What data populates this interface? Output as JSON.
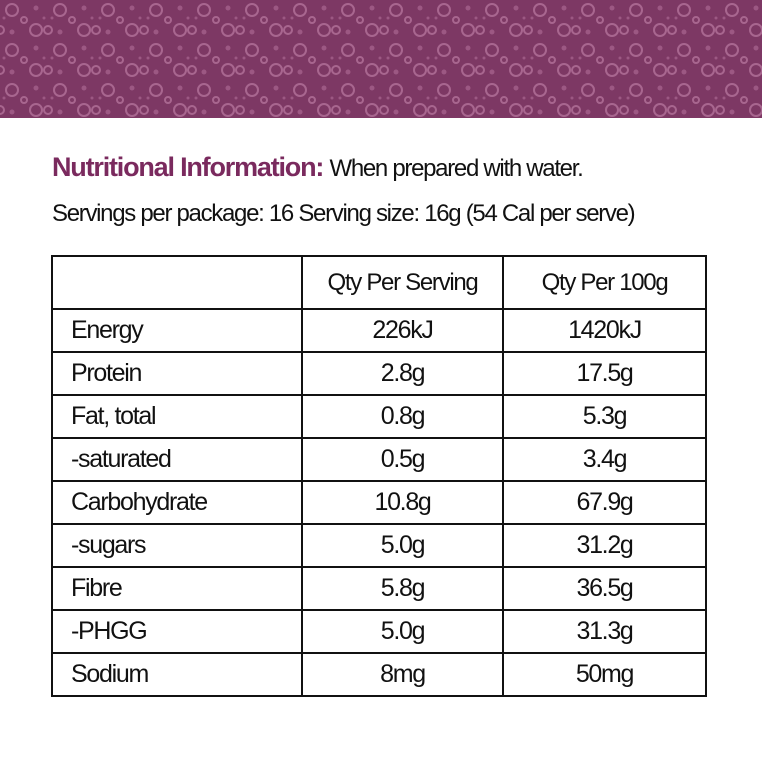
{
  "header": {
    "title": "Nutritional Information:",
    "subtitle": "When prepared with water.",
    "servings": "Servings per package: 16 Serving size: 16g (54 Cal per serve)"
  },
  "table": {
    "columns": [
      "",
      "Qty Per Serving",
      "Qty Per 100g"
    ],
    "rows": [
      [
        "Energy",
        "226kJ",
        "1420kJ"
      ],
      [
        "Protein",
        "2.8g",
        "17.5g"
      ],
      [
        "Fat, total",
        "0.8g",
        "5.3g"
      ],
      [
        "-saturated",
        "0.5g",
        "3.4g"
      ],
      [
        "Carbohydrate",
        "10.8g",
        "67.9g"
      ],
      [
        "-sugars",
        "5.0g",
        "31.2g"
      ],
      [
        "Fibre",
        "5.8g",
        "36.5g"
      ],
      [
        "-PHGG",
        "5.0g",
        "31.3g"
      ],
      [
        "Sodium",
        "8mg",
        "50mg"
      ]
    ]
  }
}
